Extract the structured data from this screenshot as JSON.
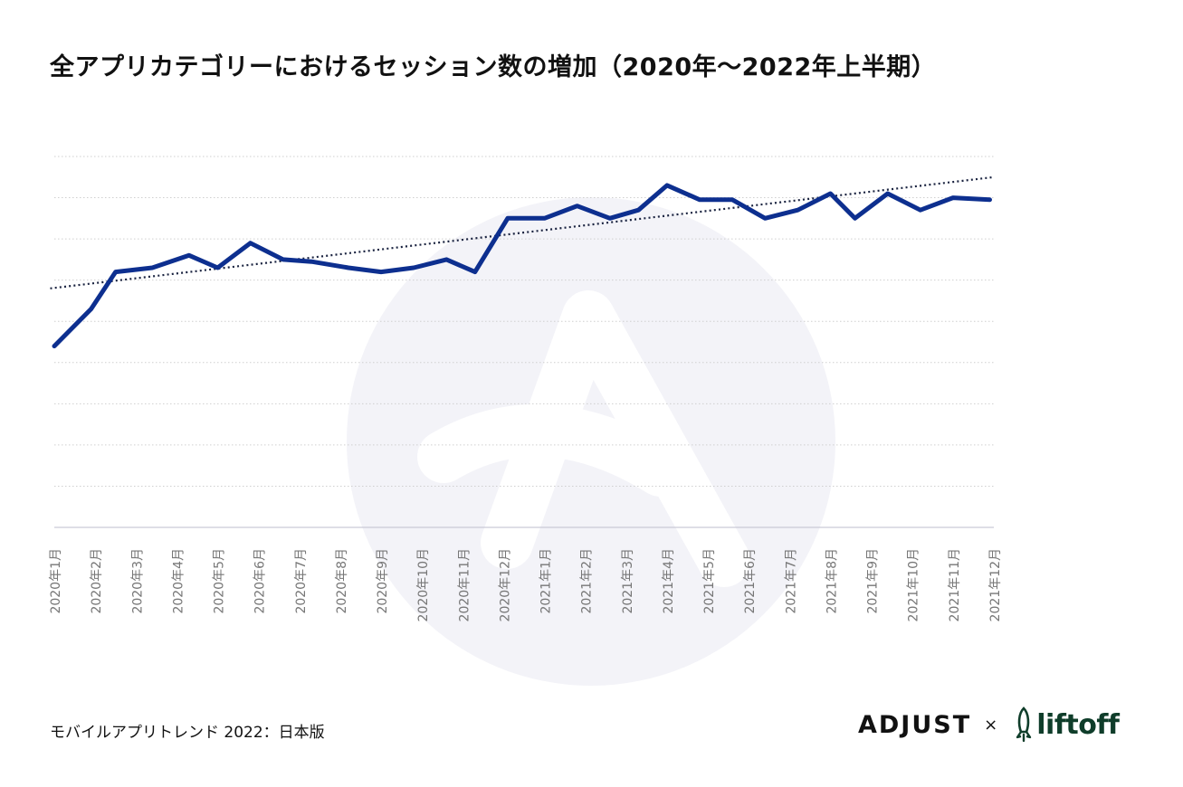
{
  "title": "全アプリカテゴリーにおけるセッション数の増加（2020年〜2022年上半期）",
  "footer": {
    "source_label": "モバイルアプリトレンド 2022：日本版"
  },
  "logos": {
    "adjust": "ADJUST",
    "separator": "×",
    "liftoff": "liftoff"
  },
  "colors": {
    "line": "#0d2f8f",
    "trend": "#1a2340",
    "grid": "#cfcfcf",
    "tick_text": "#777777",
    "watermark": "#f3f3f8"
  },
  "chart_data": {
    "type": "line",
    "title": "全アプリカテゴリーにおけるセッション数の増加（2020年〜2022年上半期）",
    "xlabel": "",
    "ylabel": "",
    "y_tick_labels_shown": false,
    "categories": [
      "2020年1月",
      "2020年2月",
      "2020年3月",
      "2020年4月",
      "2020年5月",
      "2020年6月",
      "2020年7月",
      "2020年8月",
      "2020年9月",
      "2020年10月",
      "2020年11月",
      "2020年12月",
      "2021年1月",
      "2021年2月",
      "2021年3月",
      "2021年4月",
      "2021年5月",
      "2021年6月",
      "2021年7月",
      "2021年8月",
      "2021年9月",
      "2021年10月",
      "2021年11月",
      "2021年12月"
    ],
    "x_positions": [
      0,
      1,
      2,
      3,
      4,
      5,
      6,
      7,
      8,
      9,
      10,
      11,
      12,
      13,
      14,
      15,
      16,
      17,
      18,
      19,
      20,
      21,
      22,
      23
    ],
    "series": [
      {
        "x": [
          0,
          0.9,
          1.5,
          2.4,
          3.3,
          4,
          4.8,
          5.6,
          6.3,
          7.2,
          8,
          8.8,
          9.6,
          10.3,
          11.1,
          12,
          12.8,
          13.6,
          14.3,
          15,
          15.8,
          16.6,
          17.4,
          18.2,
          19,
          19.6,
          20.4,
          21.2,
          22,
          22.9
        ],
        "values": [
          4.4,
          5.3,
          6.2,
          6.3,
          6.6,
          6.3,
          6.9,
          6.5,
          6.45,
          6.3,
          6.2,
          6.3,
          6.5,
          6.2,
          7.5,
          7.5,
          7.8,
          7.5,
          7.7,
          8.3,
          7.95,
          7.95,
          7.5,
          7.7,
          8.1,
          7.5,
          8.1,
          7.7,
          8.0,
          7.95
        ]
      },
      {
        "type": "trendline",
        "x": [
          -0.1,
          23
        ],
        "values": [
          5.8,
          8.5
        ]
      }
    ],
    "ylim": [
      0,
      9
    ],
    "grid": true,
    "legend": "none"
  }
}
